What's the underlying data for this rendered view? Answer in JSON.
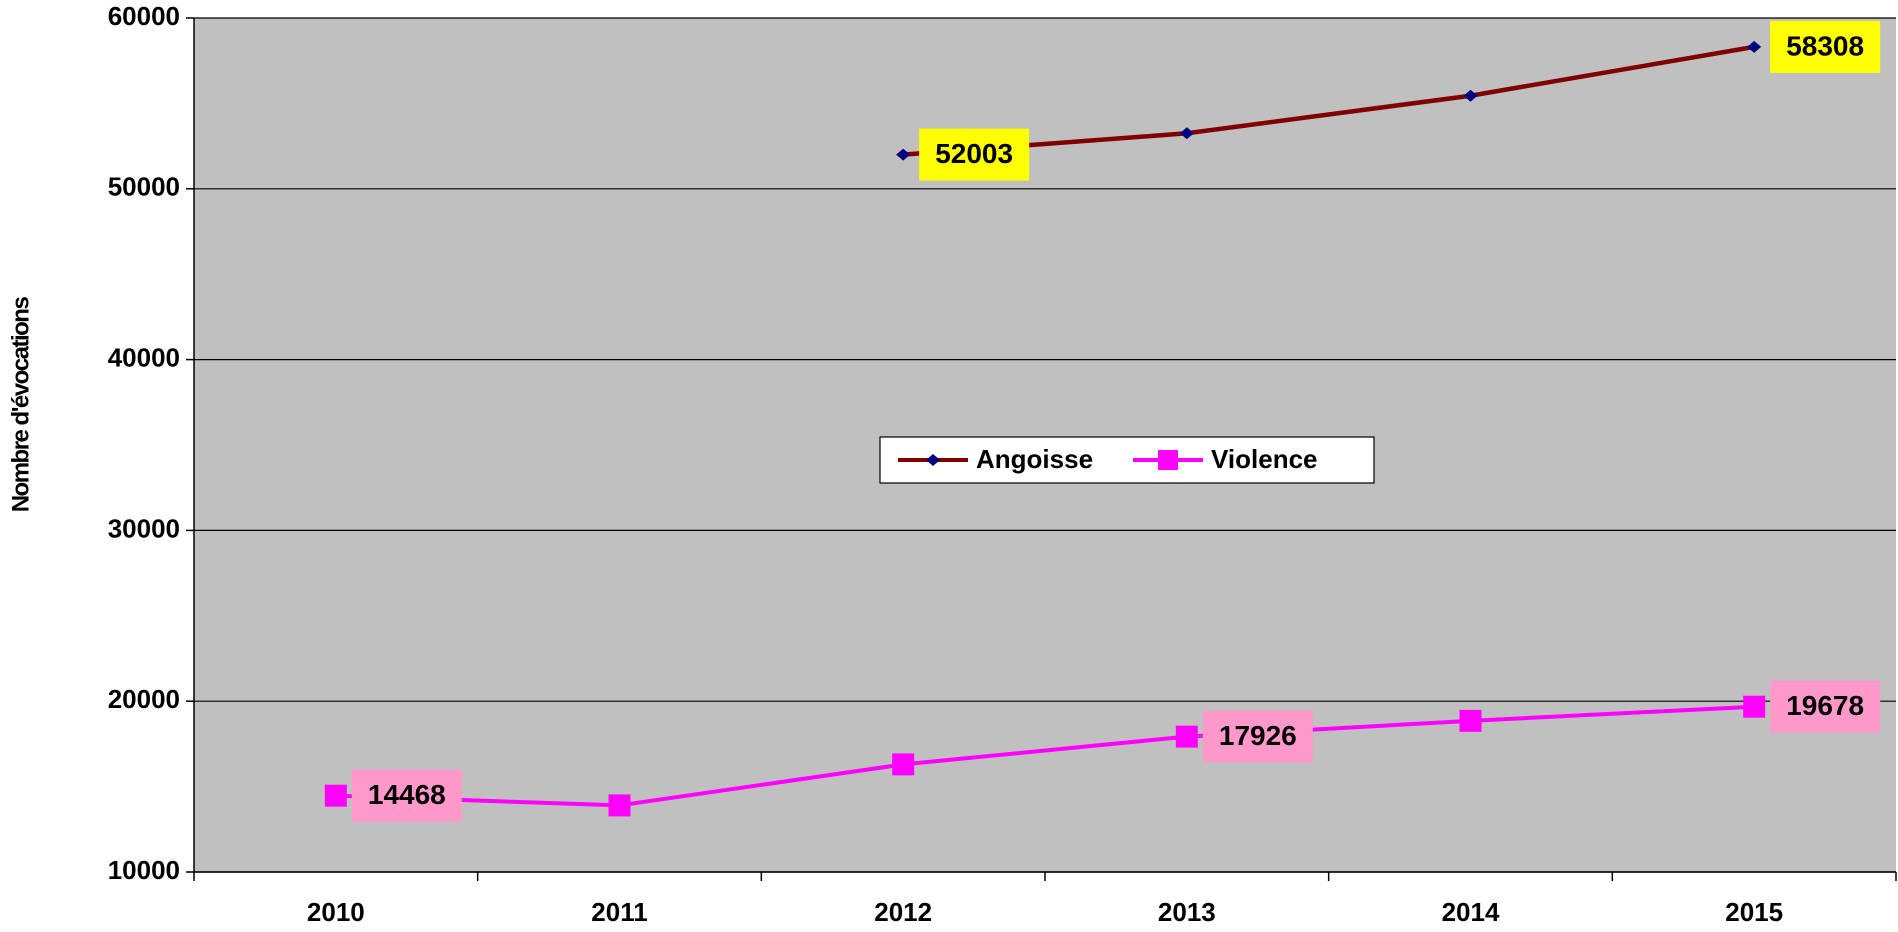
{
  "chart_data": {
    "type": "line",
    "y_label": "Nombre d'évocations",
    "categories": [
      "2010",
      "2011",
      "2012",
      "2013",
      "2014",
      "2015"
    ],
    "series": [
      {
        "name": "Angoisse",
        "color": "#800000",
        "marker_color": "#000080",
        "marker": "diamond",
        "label_color": "#ffff00",
        "values": [
          null,
          null,
          52003,
          53250,
          55450,
          58308
        ],
        "value_labels": [
          null,
          null,
          "52003",
          null,
          null,
          "58308"
        ]
      },
      {
        "name": "Violence",
        "color": "#ff00ff",
        "marker_color": "#ff00ff",
        "marker": "square",
        "label_color": "#ff99cc",
        "values": [
          14468,
          13900,
          16300,
          17926,
          18850,
          19678
        ],
        "value_labels": [
          "14468",
          null,
          null,
          "17926",
          null,
          "19678"
        ]
      }
    ],
    "ylim": [
      10000,
      60000
    ],
    "yticks": [
      10000,
      20000,
      30000,
      40000,
      50000,
      60000
    ],
    "grid": true,
    "legend": "center",
    "background": "#c0c0c0"
  }
}
